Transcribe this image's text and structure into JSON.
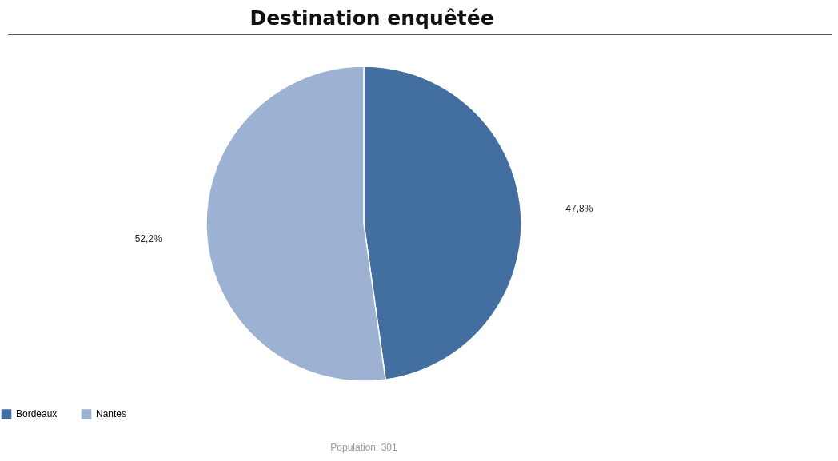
{
  "chart_data": {
    "type": "pie",
    "title": "Destination enquêtée",
    "categories": [
      "Bordeaux",
      "Nantes"
    ],
    "values": [
      47.8,
      52.2
    ],
    "colors": [
      "#436fa0",
      "#9db1d3"
    ],
    "value_labels": [
      "47,8%",
      "52,2%"
    ],
    "legend": "bottom",
    "annotations": [
      "Population: 301"
    ]
  }
}
